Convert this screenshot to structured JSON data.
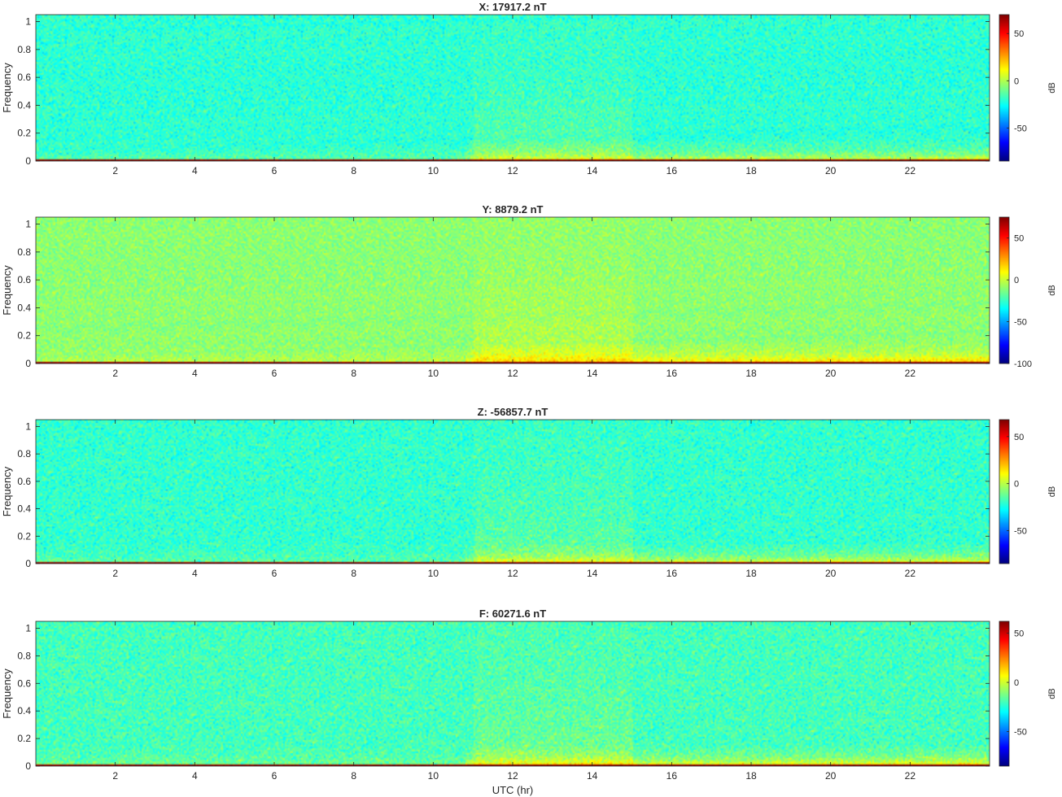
{
  "chart_data": [
    {
      "type": "heatmap",
      "title": "X: 17917.2 nT",
      "ylabel": "Frequency",
      "xlabel": "",
      "xlim": [
        0,
        24
      ],
      "ylim": [
        0,
        1.05
      ],
      "xticks": [
        2,
        4,
        6,
        8,
        10,
        12,
        14,
        16,
        18,
        20,
        22
      ],
      "yticks": [
        0,
        0.2,
        0.4,
        0.6,
        0.8,
        1
      ],
      "colorbar": {
        "label": "dB",
        "ticks": [
          50,
          0,
          -50
        ],
        "range": [
          -85,
          70
        ]
      },
      "colormap": "jet",
      "features": {
        "background_db": -20,
        "base_line_db": 70,
        "active_hours": [
          11,
          15
        ],
        "low_freq_rise_db": 40
      }
    },
    {
      "type": "heatmap",
      "title": "Y: 8879.2 nT",
      "ylabel": "Frequency",
      "xlabel": "",
      "xlim": [
        0,
        24
      ],
      "ylim": [
        0,
        1.05
      ],
      "xticks": [
        2,
        4,
        6,
        8,
        10,
        12,
        14,
        16,
        18,
        20,
        22
      ],
      "yticks": [
        0,
        0.2,
        0.4,
        0.6,
        0.8,
        1
      ],
      "colorbar": {
        "label": "dB",
        "ticks": [
          50,
          0,
          -50,
          -100
        ],
        "range": [
          -100,
          75
        ]
      },
      "colormap": "jet",
      "features": {
        "background_db": -10,
        "base_line_db": 75,
        "active_hours": [
          11,
          15
        ],
        "low_freq_rise_db": 40
      }
    },
    {
      "type": "heatmap",
      "title": "Z: -56857.7 nT",
      "ylabel": "Frequency",
      "xlabel": "",
      "xlim": [
        0,
        24
      ],
      "ylim": [
        0,
        1.05
      ],
      "xticks": [
        2,
        4,
        6,
        8,
        10,
        12,
        14,
        16,
        18,
        20,
        22
      ],
      "yticks": [
        0,
        0.2,
        0.4,
        0.6,
        0.8,
        1
      ],
      "colorbar": {
        "label": "dB",
        "ticks": [
          50,
          0,
          -50
        ],
        "range": [
          -85,
          68
        ]
      },
      "colormap": "jet",
      "features": {
        "background_db": -20,
        "base_line_db": 68,
        "active_hours": [
          11,
          15
        ],
        "low_freq_rise_db": 40
      }
    },
    {
      "type": "heatmap",
      "title": "F: 60271.6 nT",
      "ylabel": "Frequency",
      "xlabel": "UTC (hr)",
      "xlim": [
        0,
        24
      ],
      "ylim": [
        0,
        1.05
      ],
      "xticks": [
        2,
        4,
        6,
        8,
        10,
        12,
        14,
        16,
        18,
        20,
        22
      ],
      "yticks": [
        0,
        0.2,
        0.4,
        0.6,
        0.8,
        1
      ],
      "colorbar": {
        "label": "dB",
        "ticks": [
          50,
          0,
          -50
        ],
        "range": [
          -85,
          62
        ]
      },
      "colormap": "jet",
      "features": {
        "background_db": -20,
        "base_line_db": 62,
        "active_hours": [
          11,
          15
        ],
        "low_freq_rise_db": 40
      }
    }
  ]
}
